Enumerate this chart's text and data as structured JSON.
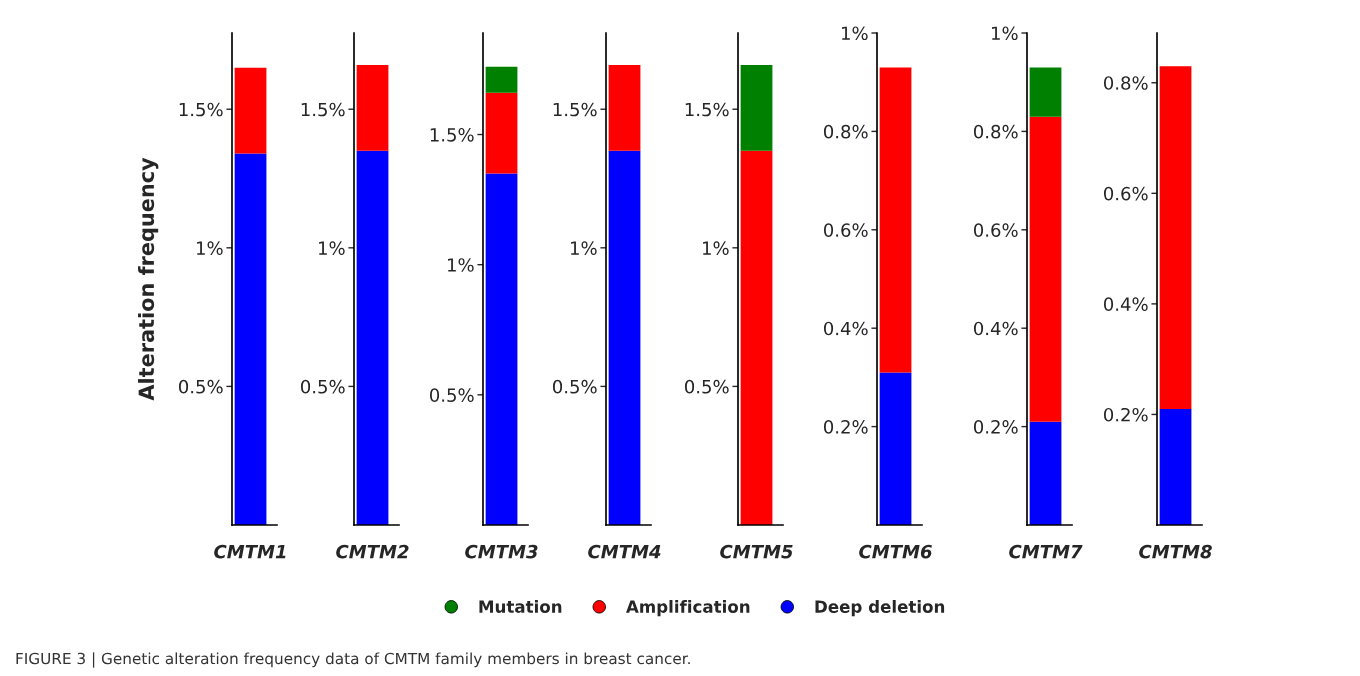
{
  "chart_data": [
    {
      "type": "bar",
      "stacked": true,
      "categories": [
        "CMTM1"
      ],
      "ylabel": "Alteration frequency",
      "legend": "bottom",
      "ylim": [
        0,
        1.775
      ],
      "yticks": [
        {
          "value": 0.5,
          "label": "0.5%"
        },
        {
          "value": 1,
          "label": "1%"
        },
        {
          "value": 1.5,
          "label": "1.5%"
        }
      ],
      "series": [
        {
          "name": "Deep deletion",
          "color": "#0000ff",
          "values": [
            1.34
          ]
        },
        {
          "name": "Amplification",
          "color": "#ff0000",
          "values": [
            0.31
          ]
        },
        {
          "name": "Mutation",
          "color": "#008000",
          "values": [
            null
          ]
        }
      ],
      "annotations": [
        "FIGURE 3 | Genetic alteration frequency data of CMTM family members in breast cancer."
      ]
    },
    {
      "type": "bar",
      "stacked": true,
      "categories": [
        "CMTM2"
      ],
      "ylim": [
        0,
        1.775
      ],
      "yticks": [
        {
          "value": 0.5,
          "label": "0.5%"
        },
        {
          "value": 1,
          "label": "1%"
        },
        {
          "value": 1.5,
          "label": "1.5%"
        }
      ],
      "series": [
        {
          "color": "#0000ff",
          "values": [
            1.35
          ]
        },
        {
          "color": "#ff0000",
          "values": [
            0.31
          ]
        },
        {
          "color": "#008000",
          "values": [
            null
          ]
        }
      ]
    },
    {
      "type": "bar",
      "stacked": true,
      "categories": [
        "CMTM3"
      ],
      "ylim": [
        0,
        1.89
      ],
      "yticks": [
        {
          "value": 0.5,
          "label": "0.5%"
        },
        {
          "value": 1,
          "label": "1%"
        },
        {
          "value": 1.5,
          "label": "1.5%"
        }
      ],
      "series": [
        {
          "color": "#0000ff",
          "values": [
            1.35
          ]
        },
        {
          "color": "#ff0000",
          "values": [
            0.31
          ]
        },
        {
          "color": "#008000",
          "values": [
            0.1
          ]
        }
      ]
    },
    {
      "type": "bar",
      "stacked": true,
      "categories": [
        "CMTM4"
      ],
      "ylim": [
        0,
        1.775
      ],
      "yticks": [
        {
          "value": 0.5,
          "label": "0.5%"
        },
        {
          "value": 1,
          "label": "1%"
        },
        {
          "value": 1.5,
          "label": "1.5%"
        }
      ],
      "series": [
        {
          "color": "#0000ff",
          "values": [
            1.35
          ]
        },
        {
          "color": "#ff0000",
          "values": [
            0.31
          ]
        },
        {
          "color": "#008000",
          "values": [
            null
          ]
        }
      ]
    },
    {
      "type": "bar",
      "stacked": true,
      "categories": [
        "CMTM5"
      ],
      "ylim": [
        0,
        1.775
      ],
      "yticks": [
        {
          "value": 0.5,
          "label": "0.5%"
        },
        {
          "value": 1,
          "label": "1%"
        },
        {
          "value": 1.5,
          "label": "1.5%"
        }
      ],
      "series": [
        {
          "color": "#0000ff",
          "values": [
            null
          ]
        },
        {
          "color": "#ff0000",
          "values": [
            1.35
          ]
        },
        {
          "color": "#008000",
          "values": [
            0.31
          ]
        }
      ]
    },
    {
      "type": "bar",
      "stacked": true,
      "categories": [
        "CMTM6"
      ],
      "ylim": [
        0,
        1
      ],
      "yticks": [
        {
          "value": 0.2,
          "label": "0.2%"
        },
        {
          "value": 0.4,
          "label": "0.4%"
        },
        {
          "value": 0.6,
          "label": "0.6%"
        },
        {
          "value": 0.8,
          "label": "0.8%"
        },
        {
          "value": 1,
          "label": "1%"
        }
      ],
      "series": [
        {
          "color": "#0000ff",
          "values": [
            0.31
          ]
        },
        {
          "color": "#ff0000",
          "values": [
            0.62
          ]
        },
        {
          "color": "#008000",
          "values": [
            null
          ]
        }
      ]
    },
    {
      "type": "bar",
      "stacked": true,
      "categories": [
        "CMTM7"
      ],
      "ylim": [
        0,
        1
      ],
      "yticks": [
        {
          "value": 0.2,
          "label": "0.2%"
        },
        {
          "value": 0.4,
          "label": "0.4%"
        },
        {
          "value": 0.6,
          "label": "0.6%"
        },
        {
          "value": 0.8,
          "label": "0.8%"
        },
        {
          "value": 1,
          "label": "1%"
        }
      ],
      "series": [
        {
          "color": "#0000ff",
          "values": [
            0.21
          ]
        },
        {
          "color": "#ff0000",
          "values": [
            0.62
          ]
        },
        {
          "color": "#008000",
          "values": [
            0.1
          ]
        }
      ]
    },
    {
      "type": "bar",
      "stacked": true,
      "categories": [
        "CMTM8"
      ],
      "ylim": [
        0,
        0.89
      ],
      "yticks": [
        {
          "value": 0.2,
          "label": "0.2%"
        },
        {
          "value": 0.4,
          "label": "0.4%"
        },
        {
          "value": 0.6,
          "label": "0.6%"
        },
        {
          "value": 0.8,
          "label": "0.8%"
        }
      ],
      "series": [
        {
          "color": "#0000ff",
          "values": [
            0.21
          ]
        },
        {
          "color": "#ff0000",
          "values": [
            0.62
          ]
        },
        {
          "color": "#008000",
          "values": [
            null
          ]
        }
      ]
    }
  ]
}
